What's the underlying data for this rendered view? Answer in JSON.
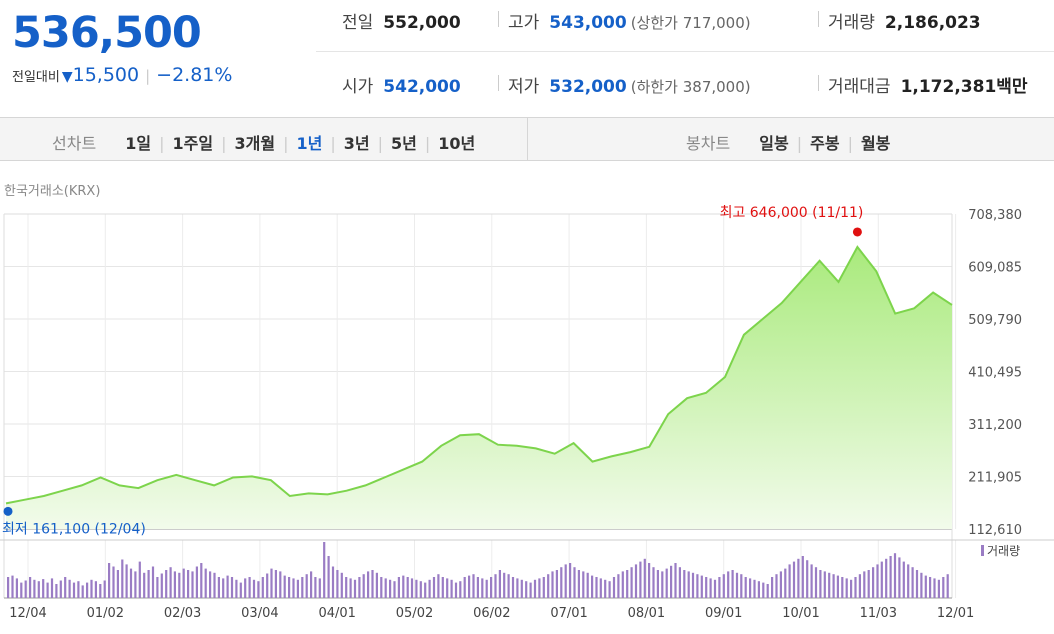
{
  "summary": {
    "price": "536,500",
    "change_label": "전일대비",
    "change_value": "15,500",
    "change_pct": "−2.81%",
    "stats": [
      {
        "key": "전일",
        "value": "552,000",
        "blue": false,
        "sub": ""
      },
      {
        "key": "고가",
        "value": "543,000",
        "blue": true,
        "sub": "(상한가 717,000)"
      },
      {
        "key": "거래량",
        "value": "2,186,023",
        "blue": false,
        "sub": ""
      },
      {
        "key": "시가",
        "value": "542,000",
        "blue": true,
        "sub": ""
      },
      {
        "key": "저가",
        "value": "532,000",
        "blue": true,
        "sub": "(하한가 387,000)"
      },
      {
        "key": "거래대금",
        "value": "1,172,381",
        "blue": false,
        "sub": "백만"
      }
    ]
  },
  "tabs": {
    "line_caption": "선차트",
    "line_tabs": [
      "1일",
      "1주일",
      "3개월",
      "1년",
      "3년",
      "5년",
      "10년"
    ],
    "line_active": "1년",
    "candle_caption": "봉차트",
    "candle_tabs": [
      "일봉",
      "주봉",
      "월봉"
    ]
  },
  "exchange": "한국거래소(KRX)",
  "colors": {
    "accent": "#1560c8",
    "line": "#7dd44c",
    "fill_top": "#a9ea7c",
    "fill_bottom": "#f2fbeb",
    "high": "#e01010",
    "volume": "#9a7cc4"
  },
  "chart_data": {
    "type": "area",
    "title": "",
    "x_tick_labels": [
      "12/04",
      "01/02",
      "02/03",
      "03/04",
      "04/01",
      "05/02",
      "06/02",
      "07/01",
      "08/01",
      "09/01",
      "10/01",
      "11/03",
      "12/01"
    ],
    "y_tick_labels": [
      "708,380",
      "609,085",
      "509,790",
      "410,495",
      "311,200",
      "211,905",
      "112,610"
    ],
    "ylim": [
      112610,
      708380
    ],
    "series": [
      {
        "values": [
          161100,
          168000,
          175000,
          185000,
          195000,
          210000,
          195000,
          190000,
          205000,
          215000,
          205000,
          195000,
          210000,
          212000,
          205000,
          175000,
          180000,
          178000,
          185000,
          195000,
          210000,
          225000,
          240000,
          270000,
          290000,
          292000,
          272000,
          270000,
          265000,
          255000,
          275000,
          240000,
          250000,
          258000,
          268000,
          330000,
          360000,
          370000,
          400000,
          480000,
          510000,
          540000,
          580000,
          620000,
          580000,
          646000,
          600000,
          520000,
          530000,
          560000,
          536500
        ]
      }
    ],
    "annotations": [
      {
        "label": "최고 646,000 (11/11)",
        "value": 646000,
        "color": "#e01010"
      },
      {
        "label": "최저 161,100 (12/04)",
        "value": 161100,
        "color": "#1560c8"
      }
    ],
    "volume": {
      "label": "거래량",
      "values": [
        30,
        32,
        28,
        22,
        25,
        30,
        26,
        24,
        27,
        22,
        28,
        20,
        25,
        30,
        26,
        22,
        24,
        18,
        22,
        26,
        24,
        20,
        25,
        50,
        45,
        40,
        55,
        48,
        42,
        38,
        52,
        36,
        40,
        45,
        30,
        35,
        40,
        44,
        38,
        36,
        42,
        40,
        38,
        45,
        50,
        42,
        38,
        36,
        30,
        28,
        32,
        30,
        26,
        22,
        28,
        30,
        26,
        24,
        30,
        35,
        42,
        40,
        38,
        32,
        30,
        28,
        26,
        30,
        34,
        38,
        30,
        28,
        80,
        60,
        45,
        40,
        36,
        30,
        28,
        26,
        30,
        34,
        38,
        40,
        36,
        30,
        28,
        26,
        24,
        30,
        32,
        30,
        28,
        26,
        24,
        22,
        26,
        30,
        34,
        30,
        28,
        26,
        22,
        24,
        30,
        32,
        34,
        30,
        28,
        26,
        30,
        34,
        40,
        36,
        34,
        30,
        28,
        26,
        24,
        22,
        26,
        28,
        30,
        34,
        38,
        40,
        44,
        48,
        50,
        44,
        40,
        38,
        36,
        32,
        30,
        28,
        26,
        24,
        30,
        34,
        38,
        40,
        44,
        48,
        52,
        56,
        50,
        44,
        40,
        38,
        42,
        46,
        50,
        44,
        40,
        38,
        36,
        34,
        32,
        30,
        28,
        26,
        30,
        34,
        38,
        40,
        36,
        34,
        30,
        28,
        26,
        24,
        22,
        20,
        30,
        34,
        38,
        42,
        48,
        52,
        56,
        60,
        54,
        48,
        44,
        40,
        38,
        36,
        34,
        32,
        30,
        28,
        26,
        30,
        34,
        38,
        40,
        44,
        48,
        52,
        56,
        60,
        64,
        58,
        52,
        48,
        44,
        40,
        36,
        32,
        30,
        28,
        26,
        30,
        34
      ]
    }
  }
}
